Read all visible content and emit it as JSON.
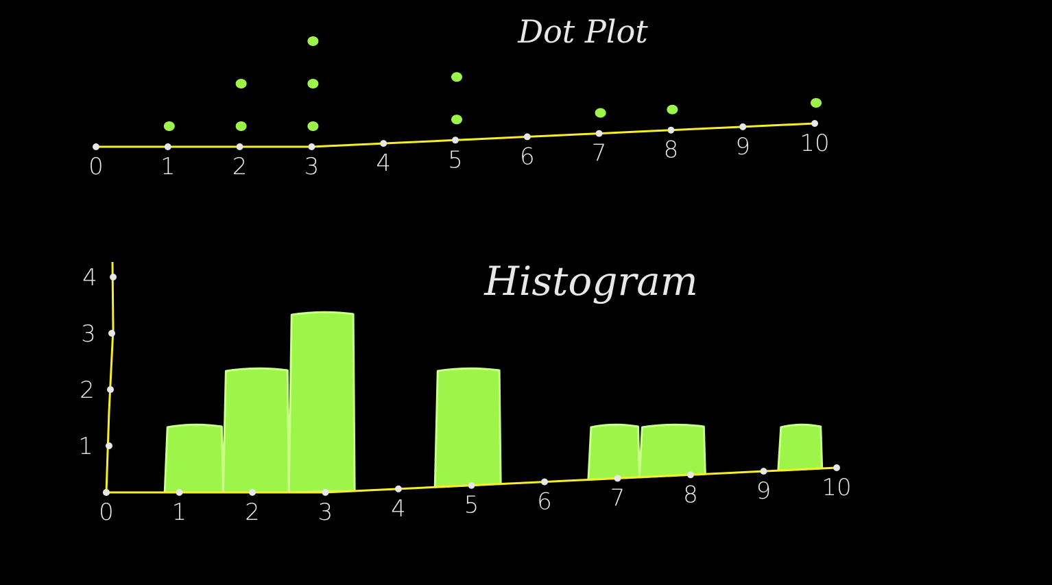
{
  "chart_data": [
    {
      "type": "scatter",
      "subtype": "dot-plot",
      "title": "Dot Plot",
      "x_ticks": [
        "0",
        "1",
        "2",
        "3",
        "4",
        "5",
        "6",
        "7",
        "8",
        "9",
        "10"
      ],
      "xlim": [
        0,
        10
      ],
      "counts": [
        0,
        1,
        2,
        3,
        0,
        2,
        0,
        1,
        1,
        0,
        1
      ],
      "grid": false,
      "legend": "none"
    },
    {
      "type": "bar",
      "subtype": "histogram",
      "title": "Histogram",
      "x_ticks": [
        "0",
        "1",
        "2",
        "3",
        "4",
        "5",
        "6",
        "7",
        "8",
        "9",
        "10"
      ],
      "y_ticks": [
        "1",
        "2",
        "3",
        "4"
      ],
      "xlim": [
        0,
        10
      ],
      "ylim": [
        0,
        4
      ],
      "bins": [
        {
          "from": 0.8,
          "to": 1.6,
          "value": 1
        },
        {
          "from": 1.6,
          "to": 2.5,
          "value": 2
        },
        {
          "from": 2.5,
          "to": 3.4,
          "value": 3
        },
        {
          "from": 4.5,
          "to": 5.4,
          "value": 2
        },
        {
          "from": 6.6,
          "to": 7.3,
          "value": 1
        },
        {
          "from": 7.3,
          "to": 8.2,
          "value": 1
        },
        {
          "from": 9.2,
          "to": 9.8,
          "value": 1
        }
      ],
      "grid": false,
      "legend": "none"
    }
  ],
  "colors": {
    "background": "#000000",
    "axis": "#f7ef24",
    "mark": "#9ef54a",
    "mark_outline": "#caff8a",
    "tick_dot": "#e8e8e8",
    "text": "#e8e8e8"
  }
}
